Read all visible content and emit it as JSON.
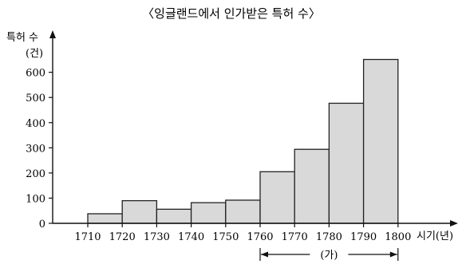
{
  "chart_data": {
    "type": "bar",
    "title": "〈잉글랜드에서 인가받은 특허 수〉",
    "ylabel": "특허 수",
    "yunit": "(건)",
    "xlabel": "시기(년)",
    "ylim": [
      0,
      700
    ],
    "yticks": [
      0,
      100,
      200,
      300,
      400,
      500,
      600
    ],
    "xticks": [
      "1710",
      "1720",
      "1730",
      "1740",
      "1750",
      "1760",
      "1770",
      "1780",
      "1790",
      "1800"
    ],
    "bins": [
      {
        "start": 1710,
        "end": 1720,
        "value": 38
      },
      {
        "start": 1720,
        "end": 1730,
        "value": 90
      },
      {
        "start": 1730,
        "end": 1740,
        "value": 56
      },
      {
        "start": 1740,
        "end": 1750,
        "value": 82
      },
      {
        "start": 1750,
        "end": 1760,
        "value": 92
      },
      {
        "start": 1760,
        "end": 1770,
        "value": 205
      },
      {
        "start": 1770,
        "end": 1780,
        "value": 294
      },
      {
        "start": 1780,
        "end": 1790,
        "value": 477
      },
      {
        "start": 1790,
        "end": 1800,
        "value": 651
      }
    ],
    "annotation": {
      "label": "(가)",
      "start": 1760,
      "end": 1800
    }
  }
}
